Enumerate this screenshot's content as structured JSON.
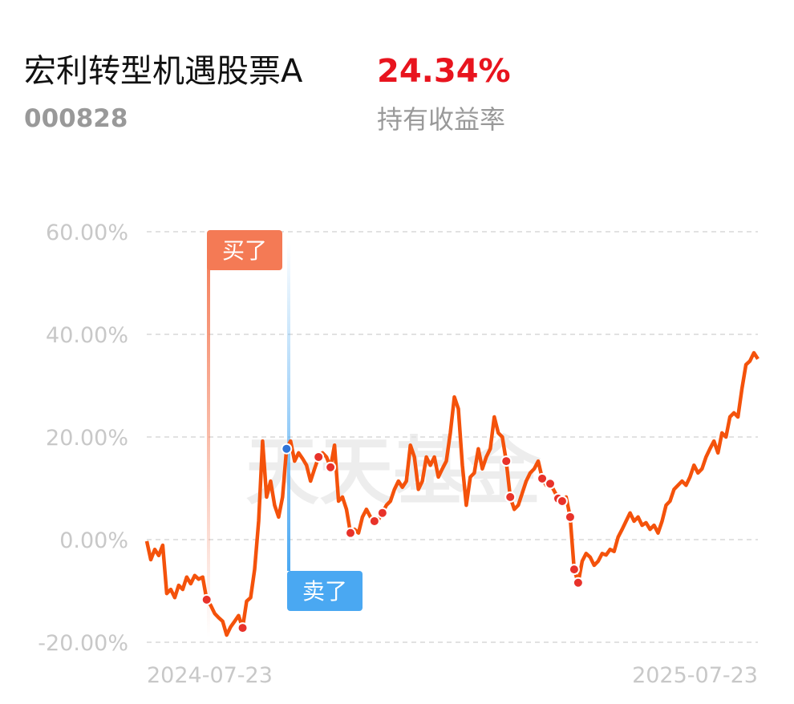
{
  "header": {
    "title": "宏利转型机遇股票A",
    "fund_code": "000828",
    "return_text": "24.34%",
    "return_label": "持有收益率"
  },
  "chart_data": {
    "type": "line",
    "categories": [
      "2024-07-23",
      null,
      null,
      null,
      null,
      null,
      null,
      null,
      null,
      null,
      null,
      null,
      null,
      null,
      null,
      null,
      null,
      null,
      null,
      null,
      null,
      null,
      null,
      null,
      null,
      null,
      null,
      null,
      null,
      null,
      null,
      null,
      null,
      null,
      null,
      null,
      null,
      null,
      null,
      null,
      null,
      null,
      null,
      null,
      null,
      null,
      null,
      null,
      null,
      null,
      null,
      null,
      null,
      null,
      null,
      null,
      null,
      null,
      null,
      null,
      null,
      null,
      null,
      null,
      null,
      null,
      null,
      null,
      null,
      null,
      null,
      null,
      null,
      null,
      null,
      null,
      null,
      null,
      null,
      null,
      null,
      null,
      null,
      null,
      null,
      null,
      null,
      null,
      null,
      null,
      null,
      null,
      null,
      null,
      null,
      null,
      null,
      null,
      null,
      null,
      null,
      null,
      null,
      null,
      null,
      null,
      null,
      null,
      null,
      null,
      null,
      null,
      null,
      null,
      null,
      null,
      null,
      null,
      null,
      null,
      null,
      null,
      null,
      null,
      null,
      null,
      null,
      null,
      null,
      null,
      null,
      null,
      null,
      null,
      null,
      null,
      null,
      null,
      null,
      null,
      null,
      null,
      null,
      null,
      null,
      null,
      null,
      null,
      null,
      null,
      null,
      null,
      null,
      "2025-07-23"
    ],
    "values": [
      -0.3,
      -3.9,
      -1.9,
      -3.1,
      -1.1,
      -10.5,
      -9.7,
      -11.3,
      -8.9,
      -9.7,
      -7.3,
      -8.6,
      -7.0,
      -7.7,
      -7.3,
      -11.7,
      -12.8,
      -14.4,
      -15.2,
      -15.9,
      -18.6,
      -17.0,
      -15.9,
      -14.8,
      -17.2,
      -12.0,
      -11.3,
      -5.8,
      3.6,
      19.2,
      8.3,
      11.4,
      6.7,
      4.4,
      8.3,
      17.7,
      19.2,
      15.3,
      16.9,
      15.8,
      14.5,
      11.4,
      13.8,
      16.1,
      16.9,
      16.1,
      14.1,
      18.4,
      7.5,
      8.3,
      5.9,
      1.3,
      2.0,
      1.3,
      4.4,
      5.9,
      4.4,
      3.6,
      3.9,
      5.2,
      6.7,
      7.5,
      9.8,
      11.4,
      10.2,
      11.4,
      18.4,
      16.1,
      9.8,
      11.4,
      16.1,
      14.5,
      16.1,
      12.2,
      13.8,
      15.3,
      20.8,
      27.8,
      25.5,
      14.5,
      6.7,
      12.2,
      13.0,
      17.7,
      13.8,
      16.1,
      17.7,
      23.9,
      20.8,
      20.0,
      15.3,
      8.3,
      5.9,
      6.7,
      9.1,
      11.4,
      13.0,
      13.8,
      15.3,
      11.9,
      10.6,
      10.9,
      9.5,
      8.0,
      7.5,
      8.3,
      4.4,
      -5.8,
      -8.4,
      -4.2,
      -2.7,
      -3.4,
      -5.0,
      -4.2,
      -2.7,
      -3.0,
      -1.9,
      -2.3,
      0.5,
      2.0,
      3.6,
      5.2,
      3.6,
      4.4,
      2.8,
      3.3,
      2.0,
      2.8,
      1.3,
      3.6,
      6.7,
      7.5,
      9.8,
      10.6,
      11.4,
      10.6,
      12.2,
      14.5,
      13.0,
      13.8,
      16.1,
      17.7,
      19.2,
      16.9,
      20.8,
      20.0,
      23.9,
      24.7,
      23.9,
      29.4,
      34.1,
      34.8,
      36.4,
      35.2
    ],
    "markers": [
      null,
      null,
      null,
      null,
      null,
      null,
      null,
      null,
      null,
      null,
      null,
      null,
      null,
      null,
      null,
      -11.7,
      null,
      null,
      null,
      null,
      null,
      null,
      null,
      null,
      -17.2,
      null,
      null,
      null,
      null,
      null,
      null,
      null,
      null,
      null,
      null,
      null,
      null,
      null,
      null,
      null,
      null,
      null,
      null,
      16.1,
      null,
      null,
      14.1,
      null,
      null,
      null,
      null,
      1.3,
      null,
      null,
      null,
      null,
      null,
      3.6,
      null,
      5.2,
      null,
      null,
      null,
      null,
      null,
      null,
      null,
      null,
      null,
      null,
      null,
      null,
      null,
      null,
      null,
      null,
      null,
      null,
      null,
      null,
      null,
      null,
      null,
      null,
      null,
      null,
      null,
      null,
      null,
      null,
      15.3,
      8.3,
      null,
      null,
      null,
      null,
      null,
      null,
      null,
      11.9,
      null,
      10.9,
      null,
      8.0,
      7.5,
      null,
      4.4,
      -5.8,
      -8.4,
      null,
      null,
      null,
      null,
      null,
      null,
      null,
      null,
      null,
      null,
      null,
      null,
      null,
      null,
      null,
      null,
      null,
      null,
      null,
      null,
      null,
      null,
      null,
      null,
      null,
      null,
      null,
      null,
      null,
      null,
      null,
      null,
      null,
      null,
      null,
      null,
      null,
      null,
      null,
      null,
      null,
      null,
      null,
      null,
      null
    ],
    "highlight_markers": [
      null,
      null,
      null,
      null,
      null,
      null,
      null,
      null,
      null,
      null,
      null,
      null,
      null,
      null,
      null,
      null,
      null,
      null,
      null,
      null,
      null,
      null,
      null,
      null,
      null,
      null,
      null,
      null,
      null,
      null,
      null,
      null,
      null,
      null,
      null,
      17.7,
      null,
      null,
      null,
      null,
      null,
      null,
      null,
      null,
      null,
      null,
      null,
      null,
      null,
      null,
      null,
      null,
      null,
      null,
      null,
      null,
      null,
      null,
      null,
      null,
      null,
      null,
      null,
      null,
      null,
      null,
      null,
      null,
      null,
      null,
      null,
      null,
      null,
      null,
      null,
      null,
      null,
      null,
      null,
      null,
      null,
      null,
      null,
      null,
      null,
      null,
      null,
      null,
      null,
      null,
      null,
      null,
      null,
      null,
      null,
      null,
      null,
      null,
      null,
      null,
      null,
      null,
      null,
      null,
      null,
      null,
      null,
      null,
      null,
      null,
      null,
      null,
      null,
      null,
      null,
      null,
      null,
      null,
      null,
      null,
      null,
      null,
      null,
      null,
      null,
      null,
      null,
      null,
      null,
      null,
      null,
      null,
      null,
      null,
      null,
      null,
      null,
      null,
      null,
      null,
      null,
      null,
      null,
      null,
      null,
      null,
      null,
      null,
      null,
      null,
      null,
      null,
      null,
      null
    ],
    "color": "#f4520b",
    "marker_color": "#e8322a",
    "highlight_color": "#2f74d8",
    "ylim": [
      -20,
      60
    ],
    "yticks": [
      {
        "value": -20,
        "label": "-20.00%"
      },
      {
        "value": 0,
        "label": "0.00%"
      },
      {
        "value": 20,
        "label": "20.00%"
      },
      {
        "value": 40,
        "label": "40.00%"
      },
      {
        "value": 60,
        "label": "60.00%"
      }
    ],
    "grid": true,
    "annotations": [
      {
        "text": "买了",
        "color": "#f47a55"
      },
      {
        "text": "卖了",
        "color": "#4aa8f2"
      }
    ],
    "watermark": "天天基金"
  }
}
